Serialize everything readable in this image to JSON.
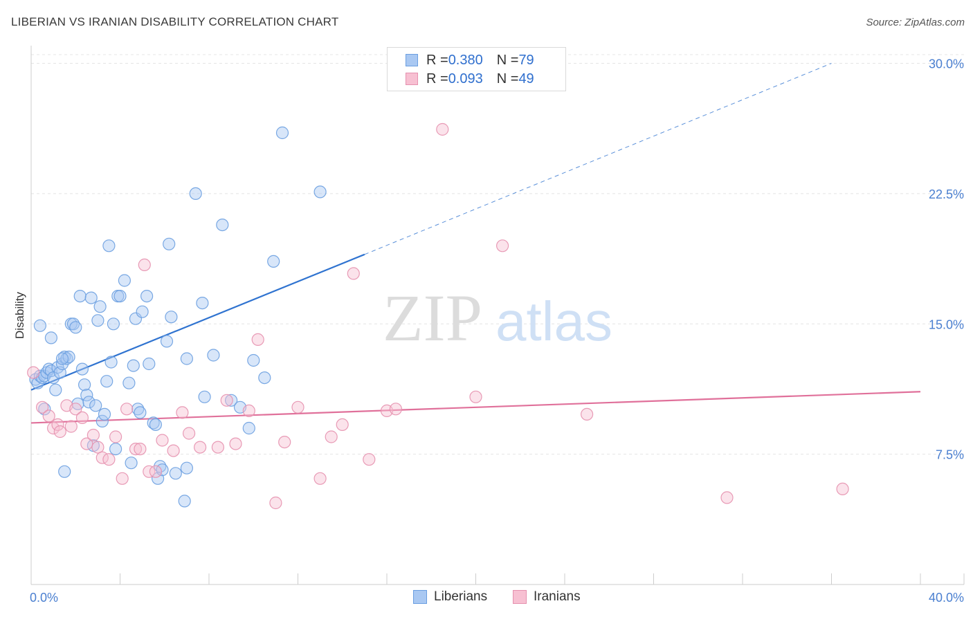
{
  "header": {
    "title": "LIBERIAN VS IRANIAN DISABILITY CORRELATION CHART",
    "source": "Source: ZipAtlas.com"
  },
  "watermark": {
    "part1": "ZIP",
    "part2": "atlas"
  },
  "legend": {
    "rows": [
      {
        "r_label": "R = ",
        "r_value": "0.380",
        "n_label": "N = ",
        "n_value": "79",
        "color": "#a9c8f2",
        "border": "#6a9ee0"
      },
      {
        "r_label": "R = ",
        "r_value": "0.093",
        "n_label": "N = ",
        "n_value": "49",
        "color": "#f7c0d2",
        "border": "#e590ae"
      }
    ]
  },
  "bottom_legend": [
    {
      "label": "Liberians",
      "color": "#a9c8f2",
      "border": "#6a9ee0"
    },
    {
      "label": "Iranians",
      "color": "#f7c0d2",
      "border": "#e590ae"
    }
  ],
  "chart_data": {
    "type": "scatter",
    "title": "LIBERIAN VS IRANIAN DISABILITY CORRELATION CHART",
    "xlabel": "",
    "ylabel": "Disability",
    "xlim": [
      0,
      40
    ],
    "ylim": [
      0,
      30.5
    ],
    "x_tick_labels": [
      {
        "value": 0,
        "label": "0.0%"
      },
      {
        "value": 40,
        "label": "40.0%"
      }
    ],
    "y_tick_labels": [
      {
        "value": 7.5,
        "label": "7.5%"
      },
      {
        "value": 15.0,
        "label": "15.0%"
      },
      {
        "value": 22.5,
        "label": "22.5%"
      },
      {
        "value": 30.0,
        "label": "30.0%"
      }
    ],
    "grid": true,
    "series": [
      {
        "name": "Liberians",
        "color": "#6a9ee0",
        "fill": "#a9c8f2",
        "trend": {
          "x": [
            0,
            15
          ],
          "y": [
            11.2,
            19.0
          ],
          "dashed_extension": {
            "x": [
              15,
              36
            ],
            "y": [
              19.0,
              30.0
            ]
          },
          "color": "#2f73d0"
        },
        "points": [
          [
            0.2,
            11.8
          ],
          [
            0.3,
            11.6
          ],
          [
            0.4,
            12.0
          ],
          [
            0.5,
            11.9
          ],
          [
            0.6,
            12.0
          ],
          [
            0.7,
            12.2
          ],
          [
            0.8,
            12.4
          ],
          [
            0.9,
            12.3
          ],
          [
            1.0,
            11.9
          ],
          [
            1.1,
            11.2
          ],
          [
            1.2,
            12.5
          ],
          [
            1.3,
            12.2
          ],
          [
            1.4,
            12.7
          ],
          [
            1.5,
            13.1
          ],
          [
            1.6,
            13.0
          ],
          [
            1.7,
            13.1
          ],
          [
            1.8,
            15.0
          ],
          [
            1.9,
            15.0
          ],
          [
            2.0,
            14.8
          ],
          [
            2.1,
            10.4
          ],
          [
            2.2,
            16.6
          ],
          [
            2.3,
            12.4
          ],
          [
            2.4,
            11.5
          ],
          [
            2.5,
            10.9
          ],
          [
            2.6,
            10.5
          ],
          [
            2.7,
            16.5
          ],
          [
            2.8,
            8.0
          ],
          [
            2.9,
            10.3
          ],
          [
            3.0,
            15.2
          ],
          [
            3.1,
            16.0
          ],
          [
            3.2,
            9.4
          ],
          [
            3.3,
            9.8
          ],
          [
            3.4,
            11.7
          ],
          [
            3.5,
            19.5
          ],
          [
            3.6,
            12.8
          ],
          [
            3.7,
            15.0
          ],
          [
            3.8,
            7.8
          ],
          [
            3.9,
            16.6
          ],
          [
            4.0,
            16.6
          ],
          [
            4.2,
            17.5
          ],
          [
            4.4,
            11.6
          ],
          [
            4.5,
            7.0
          ],
          [
            4.6,
            12.6
          ],
          [
            4.7,
            15.3
          ],
          [
            4.8,
            10.1
          ],
          [
            4.9,
            9.9
          ],
          [
            5.0,
            15.7
          ],
          [
            5.2,
            16.6
          ],
          [
            5.3,
            12.7
          ],
          [
            5.5,
            9.3
          ],
          [
            5.6,
            9.2
          ],
          [
            5.7,
            6.1
          ],
          [
            5.8,
            6.8
          ],
          [
            5.9,
            6.6
          ],
          [
            6.1,
            14.0
          ],
          [
            6.2,
            19.6
          ],
          [
            6.3,
            15.4
          ],
          [
            6.5,
            6.4
          ],
          [
            6.9,
            4.8
          ],
          [
            7.0,
            6.7
          ],
          [
            7.0,
            13.0
          ],
          [
            7.4,
            22.5
          ],
          [
            7.7,
            16.2
          ],
          [
            7.8,
            10.8
          ],
          [
            8.2,
            13.2
          ],
          [
            8.6,
            20.7
          ],
          [
            9.0,
            10.6
          ],
          [
            9.4,
            10.2
          ],
          [
            9.8,
            9.0
          ],
          [
            10.0,
            12.9
          ],
          [
            10.5,
            11.9
          ],
          [
            10.9,
            18.6
          ],
          [
            11.3,
            26.0
          ],
          [
            13.0,
            22.6
          ],
          [
            1.4,
            13.0
          ],
          [
            0.9,
            14.2
          ],
          [
            0.4,
            14.9
          ],
          [
            0.6,
            10.1
          ],
          [
            1.5,
            6.5
          ]
        ]
      },
      {
        "name": "Iranians",
        "color": "#e590ae",
        "fill": "#f7c0d2",
        "trend": {
          "x": [
            0,
            40
          ],
          "y": [
            9.3,
            11.1
          ],
          "color": "#e0709a"
        },
        "points": [
          [
            0.1,
            12.2
          ],
          [
            0.5,
            10.2
          ],
          [
            0.8,
            9.7
          ],
          [
            1.0,
            9.0
          ],
          [
            1.2,
            9.2
          ],
          [
            1.3,
            8.8
          ],
          [
            1.6,
            10.3
          ],
          [
            1.8,
            9.1
          ],
          [
            2.0,
            10.1
          ],
          [
            2.3,
            9.6
          ],
          [
            2.5,
            8.1
          ],
          [
            2.8,
            8.6
          ],
          [
            3.0,
            7.9
          ],
          [
            3.2,
            7.3
          ],
          [
            3.5,
            7.2
          ],
          [
            3.8,
            8.5
          ],
          [
            4.1,
            6.1
          ],
          [
            4.3,
            10.1
          ],
          [
            4.7,
            7.8
          ],
          [
            4.9,
            7.8
          ],
          [
            5.1,
            18.4
          ],
          [
            5.3,
            6.5
          ],
          [
            5.6,
            6.5
          ],
          [
            5.9,
            8.3
          ],
          [
            6.4,
            7.7
          ],
          [
            6.8,
            9.9
          ],
          [
            7.1,
            8.7
          ],
          [
            7.6,
            7.9
          ],
          [
            8.4,
            7.9
          ],
          [
            8.8,
            10.6
          ],
          [
            9.2,
            8.1
          ],
          [
            9.8,
            10.0
          ],
          [
            10.2,
            14.1
          ],
          [
            11.0,
            4.7
          ],
          [
            11.4,
            8.2
          ],
          [
            12.0,
            10.2
          ],
          [
            13.0,
            6.1
          ],
          [
            13.5,
            8.5
          ],
          [
            14.0,
            9.2
          ],
          [
            14.5,
            17.9
          ],
          [
            15.2,
            7.2
          ],
          [
            16.0,
            10.0
          ],
          [
            16.4,
            10.1
          ],
          [
            18.5,
            26.2
          ],
          [
            20.0,
            10.8
          ],
          [
            21.2,
            19.5
          ],
          [
            25.0,
            9.8
          ],
          [
            31.3,
            5.0
          ],
          [
            36.5,
            5.5
          ]
        ]
      }
    ]
  }
}
